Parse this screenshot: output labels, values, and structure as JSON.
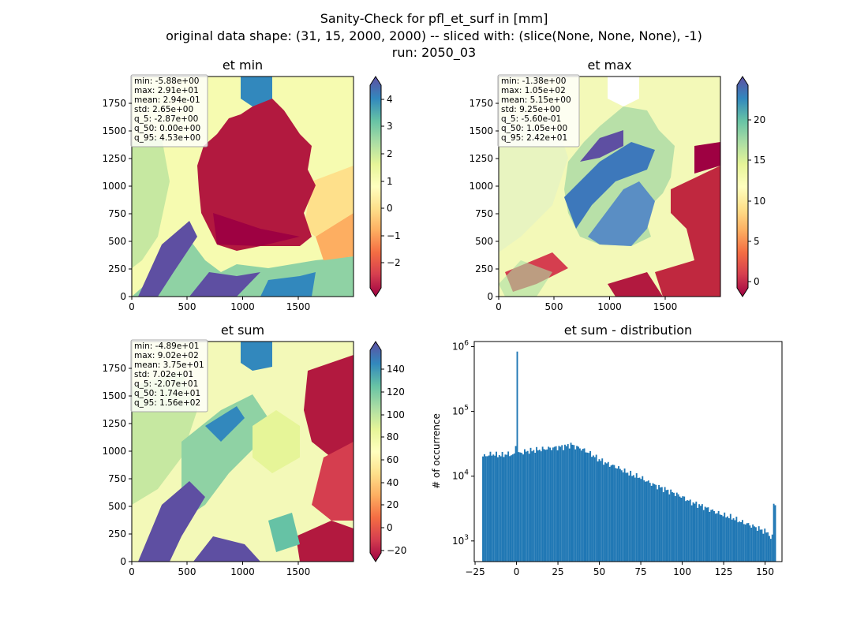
{
  "figure": {
    "title_lines": [
      "Sanity-Check for pfl_et_surf in [mm]",
      "original data shape: (31, 15, 2000, 2000) -- sliced with: (slice(None, None, None), -1)",
      "run: 2050_03"
    ]
  },
  "chart_data": [
    {
      "type": "heatmap",
      "title": "et min",
      "colormap": "Spectral",
      "xticks": [
        "0",
        "500",
        "1000",
        "1500"
      ],
      "yticks": [
        "0",
        "250",
        "500",
        "750",
        "1000",
        "1250",
        "1500",
        "1750"
      ],
      "xlim": [
        0,
        2000
      ],
      "ylim": [
        0,
        2000
      ],
      "colorbar": {
        "ticks": [
          "4",
          "3",
          "2",
          "1",
          "0",
          "−1",
          "−2"
        ],
        "tick_values": [
          4,
          3,
          2,
          1,
          0,
          -1,
          -2
        ],
        "range": [
          -2.87,
          4.53
        ]
      },
      "stats": [
        "min: -5.88e+00",
        "max: 2.91e+01",
        "mean: 2.94e-01",
        "std: 2.65e+00",
        "q_5: -2.87e+00",
        "q_50: 0.00e+00",
        "q_95: 4.53e+00"
      ]
    },
    {
      "type": "heatmap",
      "title": "et max",
      "colormap": "Spectral",
      "xticks": [
        "0",
        "500",
        "1000",
        "1500"
      ],
      "yticks": [
        "0",
        "250",
        "500",
        "750",
        "1000",
        "1250",
        "1500",
        "1750"
      ],
      "xlim": [
        0,
        2000
      ],
      "ylim": [
        0,
        2000
      ],
      "colorbar": {
        "ticks": [
          "20",
          "15",
          "10",
          "5",
          "0"
        ],
        "tick_values": [
          20,
          15,
          10,
          5,
          0
        ],
        "range": [
          -0.56,
          24.2
        ]
      },
      "stats": [
        "min: -1.38e+00",
        "max: 1.05e+02",
        "mean: 5.15e+00",
        "std: 9.25e+00",
        "q_5: -5.60e-01",
        "q_50: 1.05e+00",
        "q_95: 2.42e+01"
      ]
    },
    {
      "type": "heatmap",
      "title": "et sum",
      "colormap": "Spectral",
      "xticks": [
        "0",
        "500",
        "1000",
        "1500"
      ],
      "yticks": [
        "0",
        "250",
        "500",
        "750",
        "1000",
        "1250",
        "1500",
        "1750"
      ],
      "xlim": [
        0,
        2000
      ],
      "ylim": [
        0,
        2000
      ],
      "colorbar": {
        "ticks": [
          "140",
          "120",
          "100",
          "80",
          "60",
          "40",
          "20",
          "0",
          "−20"
        ],
        "tick_values": [
          140,
          120,
          100,
          80,
          60,
          40,
          20,
          0,
          -20
        ],
        "range": [
          -20.7,
          156
        ]
      },
      "stats": [
        "min: -4.89e+01",
        "max: 9.02e+02",
        "mean: 3.75e+01",
        "std: 7.02e+01",
        "q_5: -2.07e+01",
        "q_50: 1.74e+01",
        "q_95: 1.56e+02"
      ]
    },
    {
      "type": "bar",
      "title": "et sum - distribution",
      "ylabel": "# of occurrence",
      "yscale": "log",
      "xlim": [
        -25.5,
        160.2
      ],
      "ylim": [
        480,
        1200000
      ],
      "xticks": [
        "−25",
        "0",
        "25",
        "50",
        "75",
        "100",
        "125",
        "150"
      ],
      "xtick_values": [
        -25,
        0,
        25,
        50,
        75,
        100,
        125,
        150
      ],
      "ytick_labels": [
        "10",
        "10",
        "10",
        "10"
      ],
      "ytick_exponents": [
        "3",
        "4",
        "5",
        "6"
      ],
      "ytick_values": [
        1000,
        10000,
        100000,
        1000000
      ],
      "bin_range": [
        -20.7,
        156
      ],
      "color": "#1f77b4",
      "anchor_counts": [
        [
          -20.7,
          20000
        ],
        [
          -15,
          22000
        ],
        [
          -10,
          21000
        ],
        [
          -5,
          22000
        ],
        [
          -0.5,
          21000
        ],
        [
          0,
          840000
        ],
        [
          0.5,
          22000
        ],
        [
          5,
          24000
        ],
        [
          10,
          25000
        ],
        [
          15,
          26000
        ],
        [
          20,
          27000
        ],
        [
          25,
          28000
        ],
        [
          30,
          29000
        ],
        [
          33,
          31000
        ],
        [
          35,
          29000
        ],
        [
          40,
          26000
        ],
        [
          45,
          22000
        ],
        [
          50,
          18000
        ],
        [
          55,
          15500
        ],
        [
          60,
          14000
        ],
        [
          65,
          12000
        ],
        [
          70,
          10500
        ],
        [
          75,
          9500
        ],
        [
          80,
          8000
        ],
        [
          85,
          7000
        ],
        [
          90,
          6200
        ],
        [
          95,
          5500
        ],
        [
          100,
          4800
        ],
        [
          105,
          4000
        ],
        [
          110,
          3600
        ],
        [
          115,
          3200
        ],
        [
          120,
          2800
        ],
        [
          125,
          2500
        ],
        [
          130,
          2300
        ],
        [
          135,
          2000
        ],
        [
          140,
          1800
        ],
        [
          145,
          1600
        ],
        [
          150,
          1400
        ],
        [
          153,
          1300
        ],
        [
          154,
          700
        ],
        [
          155,
          3800
        ],
        [
          156,
          3800
        ]
      ]
    }
  ]
}
